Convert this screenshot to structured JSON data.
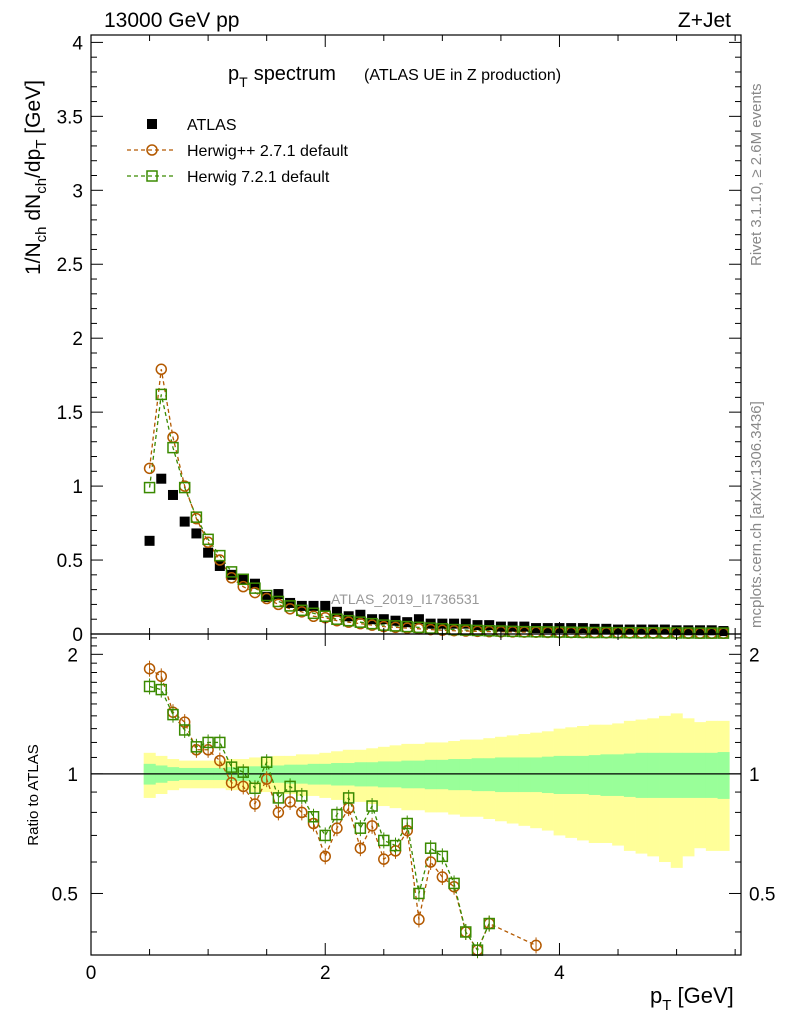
{
  "header": {
    "left": "13000 GeV pp",
    "right": "Z+Jet"
  },
  "side_labels": {
    "rivet": "Rivet 3.1.10, ≥ 2.6M events",
    "mcplots": "mcplots.cern.ch [arXiv:1306.3436]"
  },
  "chart_data": [
    {
      "type": "scatter",
      "panel": "main",
      "title_main": "p",
      "title_sub": "T",
      "title_word": "spectrum",
      "title_extra": "(ATLAS UE in Z production)",
      "ylabel": "1/N_ch dN_ch/dp_T [GeV]",
      "analysis_label": "ATLAS_2019_I1736531",
      "xlim": [
        0,
        5.55
      ],
      "ylim": [
        0,
        4.05
      ],
      "yticks": [
        "0",
        "0.5",
        "1",
        "1.5",
        "2",
        "2.5",
        "3",
        "3.5",
        "4"
      ],
      "ytick_values": [
        0,
        0.5,
        1,
        1.5,
        2,
        2.5,
        3,
        3.5,
        4
      ],
      "legend_position": "top-left",
      "series": [
        {
          "name": "ATLAS",
          "color": "#000000",
          "marker": "filled-square",
          "x": [
            0.5,
            0.6,
            0.7,
            0.8,
            0.9,
            1.0,
            1.1,
            1.2,
            1.3,
            1.4,
            1.5,
            1.6,
            1.7,
            1.8,
            1.9,
            2.0,
            2.1,
            2.2,
            2.3,
            2.4,
            2.5,
            2.6,
            2.7,
            2.8,
            2.9,
            3.0,
            3.1,
            3.2,
            3.3,
            3.4,
            3.5,
            3.6,
            3.7,
            3.8,
            3.9,
            4.0,
            4.1,
            4.2,
            4.3,
            4.4,
            4.5,
            4.6,
            4.7,
            4.8,
            4.9,
            5.0,
            5.1,
            5.2,
            5.3,
            5.4
          ],
          "values": [
            0.63,
            1.05,
            0.94,
            0.76,
            0.68,
            0.55,
            0.46,
            0.4,
            0.37,
            0.34,
            0.25,
            0.27,
            0.21,
            0.19,
            0.19,
            0.19,
            0.15,
            0.12,
            0.13,
            0.1,
            0.1,
            0.09,
            0.08,
            0.1,
            0.07,
            0.07,
            0.07,
            0.07,
            0.06,
            0.06,
            0.05,
            0.05,
            0.05,
            0.04,
            0.04,
            0.04,
            0.04,
            0.04,
            0.035,
            0.035,
            0.03,
            0.03,
            0.03,
            0.03,
            0.03,
            0.025,
            0.025,
            0.025,
            0.025,
            0.02
          ]
        },
        {
          "name": "Herwig++ 2.7.1 default",
          "color": "#b35900",
          "marker": "open-circle",
          "x": [
            0.5,
            0.6,
            0.7,
            0.8,
            0.9,
            1.0,
            1.1,
            1.2,
            1.3,
            1.4,
            1.5,
            1.6,
            1.7,
            1.8,
            1.9,
            2.0,
            2.1,
            2.2,
            2.3,
            2.4,
            2.5,
            2.6,
            2.7,
            2.8,
            2.9,
            3.0,
            3.1,
            3.2,
            3.3,
            3.4,
            3.5,
            3.6,
            3.7,
            3.8,
            3.9,
            4.0,
            4.1,
            4.2,
            4.3,
            4.4,
            4.5,
            4.6,
            4.7,
            4.8,
            4.9,
            5.0,
            5.1,
            5.2,
            5.3,
            5.4
          ],
          "values": [
            1.12,
            1.79,
            1.33,
            1.0,
            0.78,
            0.62,
            0.5,
            0.38,
            0.32,
            0.28,
            0.24,
            0.2,
            0.17,
            0.15,
            0.12,
            0.11,
            0.09,
            0.08,
            0.07,
            0.06,
            0.05,
            0.045,
            0.04,
            0.035,
            0.03,
            0.025,
            0.022,
            0.02,
            0.018,
            0.016,
            0.015,
            0.014,
            0.013,
            0.012,
            0.011,
            0.01,
            0.01,
            0.009,
            0.009,
            0.008,
            0.008,
            0.007,
            0.007,
            0.006,
            0.006,
            0.006,
            0.005,
            0.005,
            0.005,
            0.005
          ]
        },
        {
          "name": "Herwig 7.2.1 default",
          "color": "#3a8a00",
          "marker": "open-square",
          "x": [
            0.5,
            0.6,
            0.7,
            0.8,
            0.9,
            1.0,
            1.1,
            1.2,
            1.3,
            1.4,
            1.5,
            1.6,
            1.7,
            1.8,
            1.9,
            2.0,
            2.1,
            2.2,
            2.3,
            2.4,
            2.5,
            2.6,
            2.7,
            2.8,
            2.9,
            3.0,
            3.1,
            3.2,
            3.3,
            3.4,
            3.5,
            3.6,
            3.7,
            3.8,
            3.9,
            4.0,
            4.1,
            4.2,
            4.3,
            4.4,
            4.5,
            4.6,
            4.7,
            4.8,
            4.9,
            5.0,
            5.1,
            5.2,
            5.3,
            5.4
          ],
          "values": [
            0.99,
            1.62,
            1.26,
            0.99,
            0.79,
            0.64,
            0.53,
            0.42,
            0.37,
            0.31,
            0.26,
            0.22,
            0.19,
            0.16,
            0.14,
            0.12,
            0.1,
            0.09,
            0.08,
            0.07,
            0.06,
            0.055,
            0.05,
            0.045,
            0.04,
            0.035,
            0.03,
            0.027,
            0.024,
            0.022,
            0.02,
            0.018,
            0.016,
            0.015,
            0.014,
            0.013,
            0.012,
            0.011,
            0.01,
            0.01,
            0.009,
            0.009,
            0.008,
            0.008,
            0.007,
            0.007,
            0.007,
            0.006,
            0.006,
            0.006
          ]
        }
      ]
    },
    {
      "type": "scatter",
      "panel": "ratio",
      "ylabel": "Ratio to ATLAS",
      "xlabel": "p_T [GeV]",
      "xlim": [
        0,
        5.55
      ],
      "ylim": [
        0.35,
        2.25
      ],
      "yticks": [
        "0.5",
        "1",
        "2"
      ],
      "ytick_values": [
        0.5,
        1,
        2
      ],
      "xticks": [
        "0",
        "2",
        "4"
      ],
      "xtick_values": [
        0,
        2,
        4
      ],
      "band_colors": {
        "inner": "#99ff99",
        "outer": "#ffff99",
        "line": "#000000"
      },
      "bins": [
        0.5,
        0.6,
        0.7,
        0.8,
        0.9,
        1.0,
        1.1,
        1.2,
        1.3,
        1.4,
        1.5,
        1.6,
        1.7,
        1.8,
        1.9,
        2.0,
        2.1,
        2.2,
        2.3,
        2.4,
        2.5,
        2.6,
        2.7,
        2.8,
        2.9,
        3.0,
        3.1,
        3.2,
        3.3,
        3.4,
        3.5,
        3.6,
        3.7,
        3.8,
        3.9,
        4.0,
        4.1,
        4.2,
        4.3,
        4.4,
        4.5,
        4.6,
        4.7,
        4.8,
        4.9,
        5.0,
        5.1,
        5.2,
        5.3,
        5.4
      ],
      "band_inner": [
        0.06,
        0.05,
        0.04,
        0.035,
        0.035,
        0.035,
        0.035,
        0.04,
        0.04,
        0.045,
        0.05,
        0.05,
        0.055,
        0.055,
        0.06,
        0.06,
        0.065,
        0.065,
        0.07,
        0.07,
        0.075,
        0.075,
        0.08,
        0.08,
        0.085,
        0.085,
        0.09,
        0.09,
        0.095,
        0.095,
        0.1,
        0.1,
        0.1,
        0.1,
        0.105,
        0.11,
        0.11,
        0.11,
        0.115,
        0.12,
        0.12,
        0.125,
        0.13,
        0.13,
        0.13,
        0.13,
        0.13,
        0.13,
        0.13,
        0.135
      ],
      "band_outer": [
        0.13,
        0.11,
        0.09,
        0.08,
        0.08,
        0.08,
        0.08,
        0.09,
        0.09,
        0.1,
        0.1,
        0.11,
        0.11,
        0.12,
        0.12,
        0.13,
        0.14,
        0.15,
        0.15,
        0.16,
        0.17,
        0.18,
        0.19,
        0.19,
        0.2,
        0.2,
        0.21,
        0.22,
        0.22,
        0.23,
        0.24,
        0.25,
        0.26,
        0.27,
        0.28,
        0.3,
        0.31,
        0.32,
        0.33,
        0.33,
        0.34,
        0.36,
        0.37,
        0.38,
        0.4,
        0.42,
        0.38,
        0.35,
        0.36,
        0.36
      ],
      "series": [
        {
          "name": "Herwig++ 2.7.1 default",
          "color": "#b35900",
          "marker": "open-circle",
          "x": [
            0.5,
            0.6,
            0.7,
            0.8,
            0.9,
            1.0,
            1.1,
            1.2,
            1.3,
            1.4,
            1.5,
            1.6,
            1.7,
            1.8,
            1.9,
            2.0,
            2.1,
            2.2,
            2.3,
            2.4,
            2.5,
            2.6,
            2.7,
            2.8,
            2.9,
            3.0,
            3.1,
            3.2,
            3.3,
            3.4,
            3.8
          ],
          "values": [
            1.84,
            1.76,
            1.43,
            1.35,
            1.15,
            1.15,
            1.08,
            0.95,
            0.93,
            0.84,
            0.97,
            0.8,
            0.85,
            0.8,
            0.75,
            0.62,
            0.73,
            0.82,
            0.65,
            0.74,
            0.61,
            0.64,
            0.72,
            0.43,
            0.6,
            0.55,
            0.52,
            0.4,
            0.36,
            0.42,
            0.37
          ]
        },
        {
          "name": "Herwig 7.2.1 default",
          "color": "#3a8a00",
          "marker": "open-square",
          "x": [
            0.5,
            0.6,
            0.7,
            0.8,
            0.9,
            1.0,
            1.1,
            1.2,
            1.3,
            1.4,
            1.5,
            1.6,
            1.7,
            1.8,
            1.9,
            2.0,
            2.1,
            2.2,
            2.3,
            2.4,
            2.5,
            2.6,
            2.7,
            2.8,
            2.9,
            3.0,
            3.1,
            3.2,
            3.3,
            3.4
          ],
          "values": [
            1.66,
            1.63,
            1.41,
            1.29,
            1.17,
            1.2,
            1.2,
            1.04,
            1.01,
            0.92,
            1.07,
            0.87,
            0.93,
            0.88,
            0.78,
            0.7,
            0.79,
            0.87,
            0.73,
            0.83,
            0.68,
            0.66,
            0.75,
            0.5,
            0.65,
            0.62,
            0.53,
            0.4,
            0.36,
            0.42
          ]
        }
      ]
    }
  ]
}
